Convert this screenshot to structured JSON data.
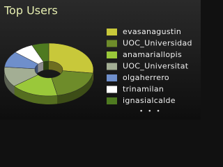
{
  "chart_data": {
    "type": "pie",
    "donut": true,
    "title": "Top Users",
    "categories": [
      "evasanagustin",
      "UOC_Universidad",
      "anamariallopis",
      "UOC_Universitat",
      "olgaherrero",
      "trinamilan",
      "ignasialcalde"
    ],
    "values": [
      22,
      16,
      14,
      10,
      8,
      6,
      5
    ],
    "colors": [
      "#c8c83a",
      "#6e8c2a",
      "#9ac83a",
      "#a3ae94",
      "#6f8fcb",
      "#ffffff",
      "#4e7a20"
    ],
    "legend_more": "• • •"
  }
}
